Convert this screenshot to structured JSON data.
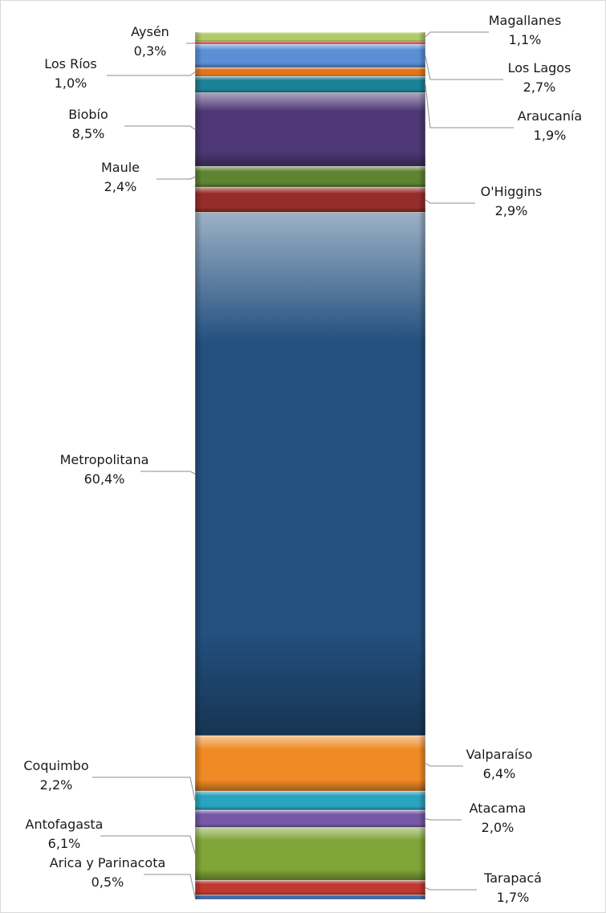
{
  "chart_data": {
    "type": "bar",
    "stacked": true,
    "title": "",
    "xlabel": "",
    "ylabel": "",
    "legend": "none",
    "grid": false,
    "series": [
      {
        "name": "Arica y Parinacota",
        "value": 0.5,
        "label_value": "0,5%",
        "color": "#3e6aa8"
      },
      {
        "name": "Tarapacá",
        "value": 1.7,
        "label_value": "1,7%",
        "color": "#c0392f"
      },
      {
        "name": "Antofagasta",
        "value": 6.1,
        "label_value": "6,1%",
        "color": "#7fa437"
      },
      {
        "name": "Atacama",
        "value": 2.0,
        "label_value": "2,0%",
        "color": "#7658a6"
      },
      {
        "name": "Coquimbo",
        "value": 2.2,
        "label_value": "2,2%",
        "color": "#2aa3bf"
      },
      {
        "name": "Valparaíso",
        "value": 6.4,
        "label_value": "6,4%",
        "color": "#f08a24"
      },
      {
        "name": "Metropolitana",
        "value": 60.4,
        "label_value": "60,4%",
        "color": "#23507f"
      },
      {
        "name": "O'Higgins",
        "value": 2.9,
        "label_value": "2,9%",
        "color": "#962d2a"
      },
      {
        "name": "Maule",
        "value": 2.4,
        "label_value": "2,4%",
        "color": "#5e8331"
      },
      {
        "name": "Biobío",
        "value": 8.5,
        "label_value": "8,5%",
        "color": "#4d3875"
      },
      {
        "name": "Araucanía",
        "value": 1.9,
        "label_value": "1,9%",
        "color": "#1c8196"
      },
      {
        "name": "Los Ríos",
        "value": 1.0,
        "label_value": "1,0%",
        "color": "#e0741b"
      },
      {
        "name": "Los Lagos",
        "value": 2.7,
        "label_value": "2,7%",
        "color": "#5a8fd6"
      },
      {
        "name": "Aysén",
        "value": 0.3,
        "label_value": "0,3%",
        "color": "#c94f4a"
      },
      {
        "name": "Magallanes",
        "value": 1.1,
        "label_value": "1,1%",
        "color": "#b2cb66"
      }
    ]
  }
}
